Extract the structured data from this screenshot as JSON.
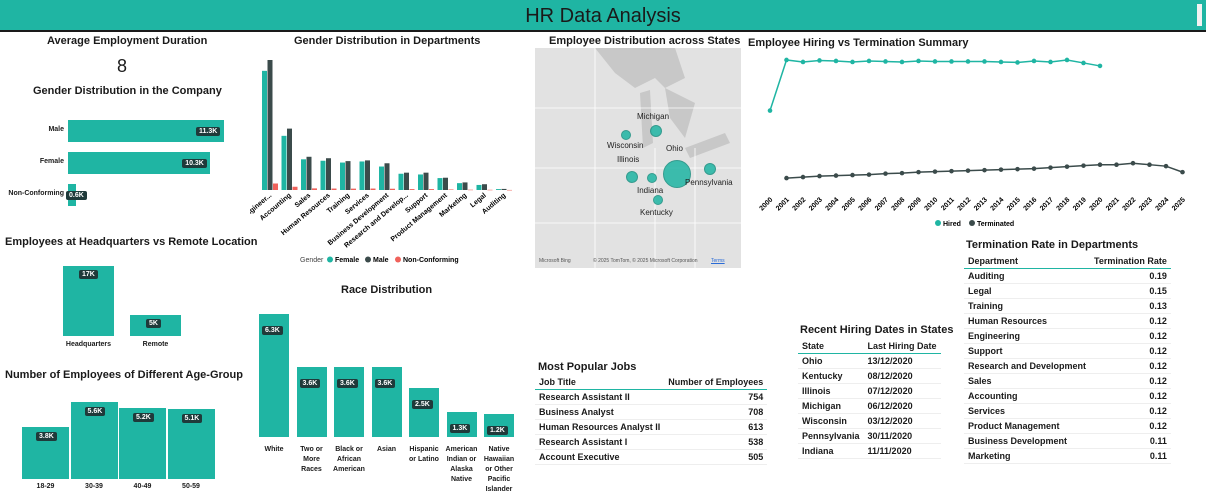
{
  "header": {
    "title": "HR Data Analysis"
  },
  "colors": {
    "accent": "#1fb5a3",
    "dark": "#3b4b4b",
    "nonconforming": "#f0625b",
    "label_bg": "#1f3a3a"
  },
  "avg_duration": {
    "title": "Average Employment Duration",
    "value": "8"
  },
  "gender_company": {
    "title": "Gender Distribution in the Company",
    "chart_data": {
      "type": "bar",
      "categories": [
        "Male",
        "Female",
        "Non-Conforming"
      ],
      "values": [
        11300,
        10300,
        600
      ],
      "labels": [
        "11.3K",
        "10.3K",
        "0.6K"
      ]
    }
  },
  "gender_departments": {
    "title": "Gender Distribution in Departments",
    "legend_title": "Gender",
    "chart_data": {
      "type": "bar",
      "categories": [
        "Engineer...",
        "Accounting",
        "Sales",
        "Human Resources",
        "Training",
        "Services",
        "Business Development",
        "Research and Develop...",
        "Support",
        "Product Management",
        "Marketing",
        "Legal",
        "Auditing"
      ],
      "series": [
        {
          "name": "Female",
          "values": [
            3300,
            1500,
            850,
            810,
            760,
            790,
            650,
            450,
            430,
            330,
            190,
            140,
            25
          ]
        },
        {
          "name": "Male",
          "values": [
            3600,
            1700,
            920,
            880,
            800,
            820,
            740,
            480,
            480,
            340,
            210,
            160,
            30
          ]
        },
        {
          "name": "Non-Conforming",
          "values": [
            180,
            90,
            45,
            40,
            38,
            40,
            35,
            25,
            25,
            15,
            8,
            6,
            2
          ]
        }
      ]
    }
  },
  "map": {
    "title": "Employee Distribution across States",
    "states": [
      "Michigan",
      "Wisconsin",
      "Illinois",
      "Ohio",
      "Indiana",
      "Pennsylvania",
      "Kentucky"
    ],
    "attribution": "© 2025 TomTom, © 2025 Microsoft Corporation",
    "terms": "Terms",
    "brand": "Microsoft Bing"
  },
  "hiring_termination": {
    "title": "Employee Hiring vs Termination Summary",
    "chart_data": {
      "type": "line",
      "x": [
        "2000",
        "2001",
        "2002",
        "2003",
        "2004",
        "2005",
        "2006",
        "2007",
        "2008",
        "2009",
        "2010",
        "2011",
        "2012",
        "2013",
        "2014",
        "2015",
        "2016",
        "2017",
        "2018",
        "2019",
        "2020",
        "2021",
        "2022",
        "2023",
        "2024",
        "2025"
      ],
      "series": [
        {
          "name": "Hired",
          "values": [
            800,
            1310,
            1290,
            1305,
            1300,
            1290,
            1300,
            1295,
            1290,
            1300,
            1295,
            1295,
            1295,
            1295,
            1290,
            1285,
            1300,
            1290,
            1310,
            1280,
            1250,
            null,
            null,
            null,
            null,
            null
          ]
        },
        {
          "name": "Terminated",
          "values": [
            null,
            120,
            130,
            140,
            145,
            150,
            155,
            165,
            170,
            180,
            185,
            190,
            195,
            200,
            205,
            210,
            215,
            225,
            235,
            245,
            255,
            255,
            270,
            255,
            240,
            180
          ]
        }
      ]
    }
  },
  "hq_remote": {
    "title": "Employees at Headquarters vs Remote  Location",
    "chart_data": {
      "type": "bar",
      "categories": [
        "Headquarters",
        "Remote"
      ],
      "values": [
        17000,
        5000
      ],
      "labels": [
        "17K",
        "5K"
      ]
    }
  },
  "race": {
    "title": "Race Distribution",
    "chart_data": {
      "type": "bar",
      "categories": [
        "White",
        "Two or More Races",
        "Black or African American",
        "Asian",
        "Hispanic or Latino",
        "American Indian or Alaska Native",
        "Native Hawaiian or Other Pacific Islander"
      ],
      "values": [
        6300,
        3600,
        3600,
        3600,
        2500,
        1300,
        1200
      ],
      "labels": [
        "6.3K",
        "3.6K",
        "3.6K",
        "3.6K",
        "2.5K",
        "1.3K",
        "1.2K"
      ]
    }
  },
  "age_group": {
    "title": "Number of Employees of Different Age-Group",
    "chart_data": {
      "type": "bar",
      "categories": [
        "18-29",
        "30-39",
        "40-49",
        "50-59"
      ],
      "values": [
        3800,
        5600,
        5200,
        5100
      ],
      "labels": [
        "3.8K",
        "5.6K",
        "5.2K",
        "5.1K"
      ]
    }
  },
  "popular_jobs": {
    "title": "Most Popular Jobs",
    "columns": [
      "Job Title",
      "Number of Employees"
    ],
    "rows": [
      [
        "Research Assistant II",
        "754"
      ],
      [
        "Business Analyst",
        "708"
      ],
      [
        "Human Resources Analyst II",
        "613"
      ],
      [
        "Research Assistant I",
        "538"
      ],
      [
        "Account Executive",
        "505"
      ]
    ]
  },
  "recent_hiring": {
    "title": "Recent Hiring Dates in States",
    "columns": [
      "State",
      "Last Hiring Date"
    ],
    "rows": [
      [
        "Ohio",
        "13/12/2020"
      ],
      [
        "Kentucky",
        "08/12/2020"
      ],
      [
        "Illinois",
        "07/12/2020"
      ],
      [
        "Michigan",
        "06/12/2020"
      ],
      [
        "Wisconsin",
        "03/12/2020"
      ],
      [
        "Pennsylvania",
        "30/11/2020"
      ],
      [
        "Indiana",
        "11/11/2020"
      ]
    ]
  },
  "termination_rate": {
    "title": "Termination Rate in Departments",
    "columns": [
      "Department",
      "Termination Rate"
    ],
    "rows": [
      [
        "Auditing",
        "0.19"
      ],
      [
        "Legal",
        "0.15"
      ],
      [
        "Training",
        "0.13"
      ],
      [
        "Human Resources",
        "0.12"
      ],
      [
        "Engineering",
        "0.12"
      ],
      [
        "Support",
        "0.12"
      ],
      [
        "Research and Development",
        "0.12"
      ],
      [
        "Sales",
        "0.12"
      ],
      [
        "Accounting",
        "0.12"
      ],
      [
        "Services",
        "0.12"
      ],
      [
        "Product Management",
        "0.12"
      ],
      [
        "Business Development",
        "0.11"
      ],
      [
        "Marketing",
        "0.11"
      ]
    ]
  }
}
